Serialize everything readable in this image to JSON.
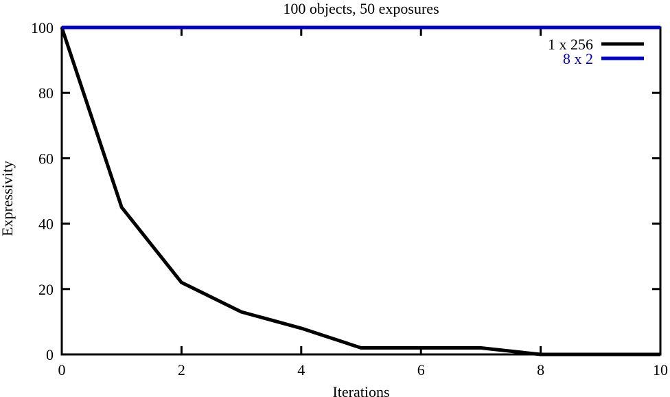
{
  "chart_data": {
    "type": "line",
    "title": "100 objects, 50 exposures",
    "xlabel": "Iterations",
    "ylabel": "Expressivity",
    "xlim": [
      0,
      10
    ],
    "ylim": [
      0,
      100
    ],
    "xticks": [
      0,
      2,
      4,
      6,
      8,
      10
    ],
    "yticks": [
      0,
      20,
      40,
      60,
      80,
      100
    ],
    "grid": false,
    "legend_position": "top-right",
    "series": [
      {
        "name": "1 x 256",
        "color": "#000000",
        "x": [
          0,
          1,
          2,
          3,
          4,
          5,
          6,
          7,
          8,
          9,
          10
        ],
        "y": [
          100,
          45,
          22,
          13,
          8,
          2,
          2,
          2,
          0,
          0,
          0
        ]
      },
      {
        "name": "8 x 2",
        "color": "#0000cc",
        "x": [
          0,
          1,
          2,
          3,
          4,
          5,
          6,
          7,
          8,
          9,
          10
        ],
        "y": [
          100,
          100,
          100,
          100,
          100,
          100,
          100,
          100,
          100,
          100,
          100
        ]
      }
    ]
  }
}
